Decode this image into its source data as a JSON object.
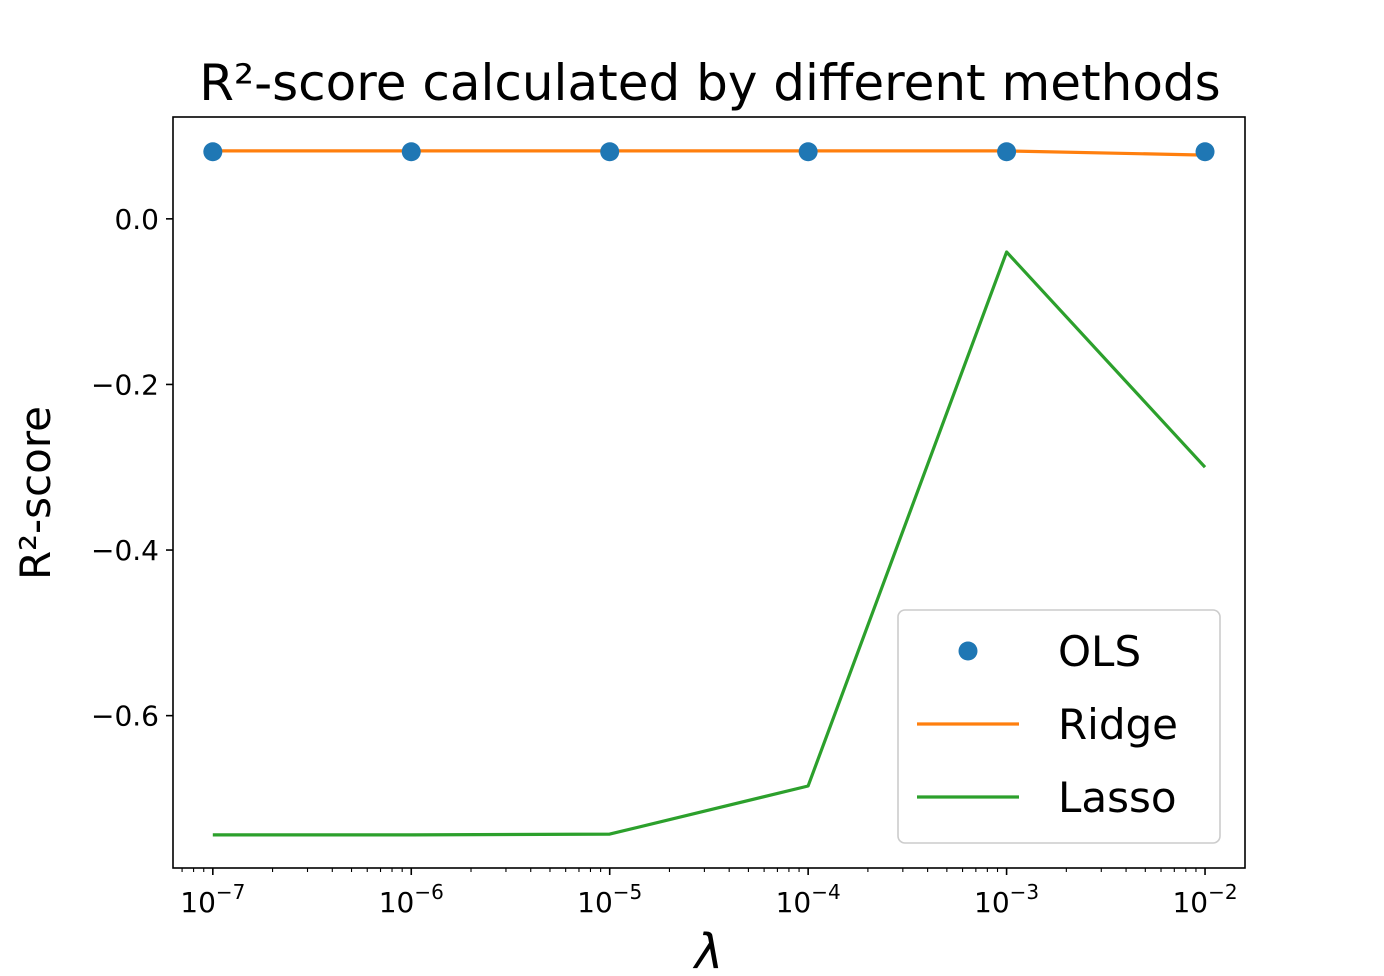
{
  "chart_data": {
    "type": "line",
    "title": "R²-score calculated by different methods",
    "xlabel": "λ",
    "ylabel": "R²-score",
    "xscale": "log",
    "x": [
      1e-07,
      1e-06,
      1e-05,
      0.0001,
      0.001,
      0.01
    ],
    "xlim": [
      6.3e-08,
      0.0159
    ],
    "ylim": [
      -0.784,
      0.123
    ],
    "xticks": [
      {
        "value": 1e-07,
        "base": "10",
        "exp": "−7"
      },
      {
        "value": 1e-06,
        "base": "10",
        "exp": "−6"
      },
      {
        "value": 1e-05,
        "base": "10",
        "exp": "−5"
      },
      {
        "value": 0.0001,
        "base": "10",
        "exp": "−4"
      },
      {
        "value": 0.001,
        "base": "10",
        "exp": "−3"
      },
      {
        "value": 0.01,
        "base": "10",
        "exp": "−2"
      }
    ],
    "yticks": [
      {
        "value": 0.0,
        "label": "0.0"
      },
      {
        "value": -0.2,
        "label": "−0.2"
      },
      {
        "value": -0.4,
        "label": "−0.4"
      },
      {
        "value": -0.6,
        "label": "−0.6"
      }
    ],
    "series": [
      {
        "name": "OLS",
        "style": "markers",
        "color": "#1f77b4",
        "values": [
          0.081,
          0.081,
          0.081,
          0.081,
          0.081,
          0.081
        ]
      },
      {
        "name": "Ridge",
        "style": "line",
        "color": "#ff7f0e",
        "values": [
          0.082,
          0.082,
          0.082,
          0.082,
          0.082,
          0.077
        ]
      },
      {
        "name": "Lasso",
        "style": "line",
        "color": "#2ca02c",
        "values": [
          -0.744,
          -0.744,
          -0.743,
          -0.685,
          -0.04,
          -0.3
        ]
      }
    ],
    "legend": "lower-right",
    "grid": false
  }
}
